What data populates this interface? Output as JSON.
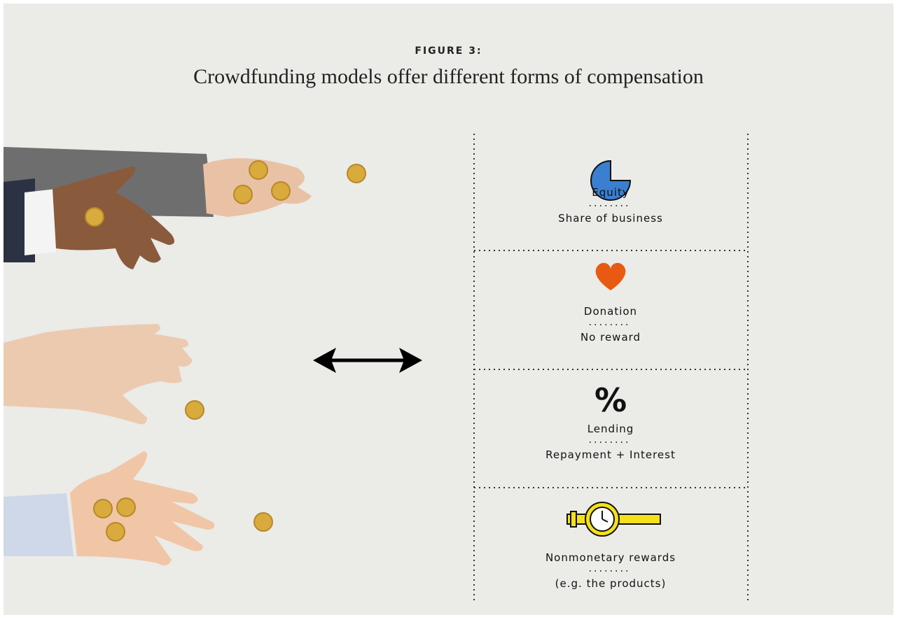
{
  "figure_label": "FIGURE 3:",
  "title": "Crowdfunding models offer different forms of compensation",
  "models": [
    {
      "name": "Equity",
      "description": "Share of business"
    },
    {
      "name": "Donation",
      "description": "No reward"
    },
    {
      "name": "Lending",
      "symbol": "%",
      "description": "Repayment + Interest"
    },
    {
      "name": "Nonmonetary rewards",
      "description": "(e.g. the products)"
    }
  ]
}
